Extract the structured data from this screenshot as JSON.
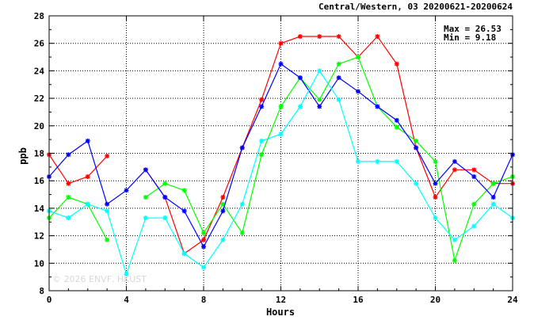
{
  "chart_data": {
    "type": "line",
    "title": "Central/Western, 03 20200621-20200624",
    "xlabel": "Hours",
    "ylabel": "ppb",
    "xlim": [
      0,
      24
    ],
    "ylim": [
      8,
      28
    ],
    "x_ticks": [
      0,
      4,
      8,
      12,
      16,
      20,
      24
    ],
    "y_ticks": [
      8,
      10,
      12,
      14,
      16,
      18,
      20,
      22,
      24,
      26,
      28
    ],
    "grid": true,
    "stats": {
      "max_label": "Max = 26.53",
      "min_label": "Min =  9.18"
    },
    "watermark": "© 2026  ENVF, HKUST",
    "x": [
      0,
      1,
      2,
      3,
      4,
      5,
      6,
      7,
      8,
      9,
      10,
      11,
      12,
      13,
      14,
      15,
      16,
      17,
      18,
      19,
      20,
      21,
      22,
      23,
      24
    ],
    "series": [
      {
        "color": "#ff0000",
        "values": [
          17.9,
          15.8,
          16.3,
          17.8,
          null,
          16.8,
          14.8,
          10.7,
          11.7,
          14.8,
          18.4,
          21.9,
          26.0,
          26.5,
          26.5,
          26.5,
          25.0,
          26.5,
          24.5,
          18.4,
          14.8,
          16.8,
          16.8,
          15.8,
          15.8
        ]
      },
      {
        "color": "#00ff00",
        "values": [
          13.3,
          14.8,
          14.3,
          11.7,
          null,
          14.8,
          15.8,
          15.3,
          12.2,
          14.3,
          12.2,
          17.9,
          21.4,
          23.5,
          21.9,
          24.5,
          25.0,
          21.4,
          19.9,
          18.9,
          17.4,
          10.2,
          14.3,
          15.8,
          16.3
        ]
      },
      {
        "color": "#0000ff",
        "values": [
          16.3,
          17.9,
          18.9,
          14.3,
          15.3,
          16.8,
          14.8,
          13.8,
          11.2,
          13.8,
          18.4,
          21.4,
          24.5,
          23.5,
          21.4,
          23.5,
          22.5,
          21.4,
          20.4,
          18.4,
          15.8,
          17.4,
          16.3,
          14.8,
          17.9
        ]
      },
      {
        "color": "#00ffff",
        "values": [
          13.8,
          13.3,
          14.3,
          13.8,
          9.2,
          13.3,
          13.3,
          10.7,
          9.7,
          11.7,
          14.3,
          18.9,
          19.4,
          21.4,
          24.0,
          21.9,
          17.4,
          17.4,
          17.4,
          15.8,
          13.3,
          11.7,
          12.7,
          14.3,
          13.3
        ]
      }
    ]
  }
}
